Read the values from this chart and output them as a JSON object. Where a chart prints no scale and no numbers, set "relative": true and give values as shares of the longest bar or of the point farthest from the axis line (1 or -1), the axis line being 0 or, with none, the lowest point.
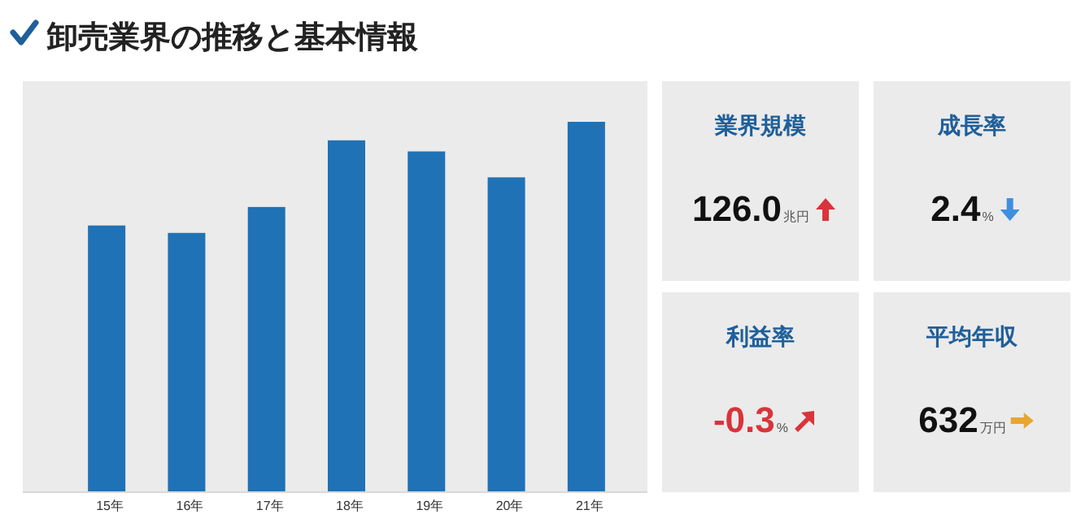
{
  "chart_data": [
    {
      "type": "bar",
      "title": "卸売業界の推移と基本情報",
      "categories": [
        "15年",
        "16年",
        "17年",
        "18年",
        "19年",
        "20年",
        "21年"
      ],
      "relative": true,
      "color": "#1f72b5",
      "values": [
        0.72,
        0.7,
        0.77,
        0.95,
        0.92,
        0.85,
        1
      ]
    },
    {
      "type": "other",
      "title": "業界規模",
      "annotations": [
        "126.0",
        "兆円"
      ]
    },
    {
      "type": "other",
      "title": "成長率",
      "annotations": [
        "2.4",
        "%"
      ]
    },
    {
      "type": "other",
      "title": "利益率",
      "annotations": [
        "-0.3",
        "%"
      ]
    },
    {
      "type": "other",
      "title": "平均年収",
      "annotations": [
        "632",
        "万円"
      ]
    }
  ]
}
